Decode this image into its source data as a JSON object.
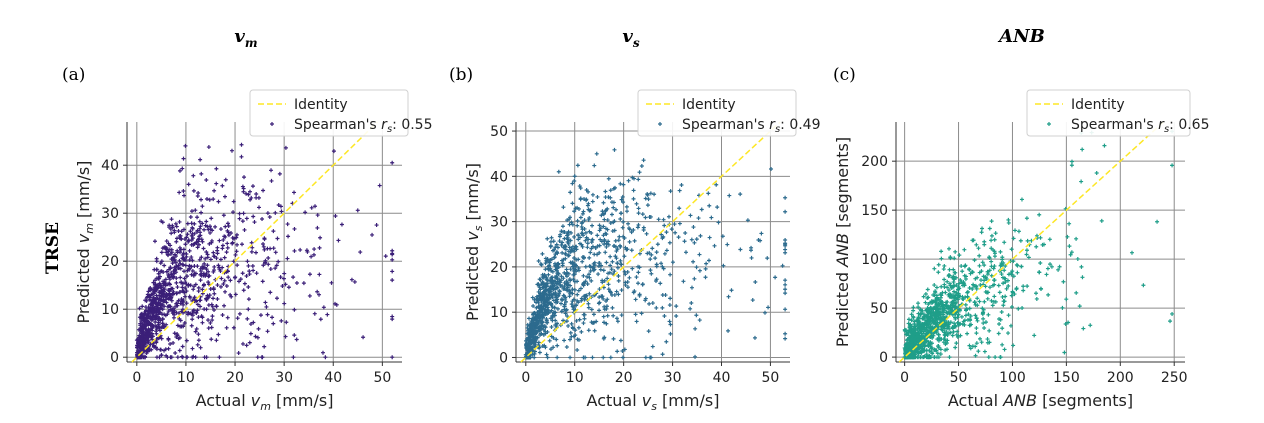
{
  "row_label": "TRSE",
  "chart_data": [
    {
      "type": "scatter",
      "panel": "(a)",
      "column_title": "v",
      "column_title_sub": "m",
      "xlabel_prefix": "Actual ",
      "xlabel_var": "v",
      "xlabel_sub": "m",
      "xlabel_suffix": " [mm/s]",
      "ylabel_prefix": "Predicted ",
      "ylabel_var": "v",
      "ylabel_sub": "m",
      "ylabel_suffix": " [mm/s]",
      "xlim": [
        -2,
        54
      ],
      "ylim": [
        -1,
        49
      ],
      "xticks": [
        0,
        10,
        20,
        30,
        40,
        50
      ],
      "yticks": [
        0,
        10,
        20,
        30,
        40
      ],
      "grid": true,
      "legend_placement": "top-right",
      "legend": {
        "identity": "Identity",
        "spearman_prefix": "Spearman's ",
        "spearman_var": "r",
        "spearman_sub": "s",
        "spearman_value": ":  0.55"
      },
      "color": "#3b1f78",
      "identity_color": "#fde725",
      "points_summary": {
        "n": 1200,
        "x_range": [
          0,
          52
        ],
        "y_range": [
          0,
          47
        ],
        "spearman_r": 0.55
      }
    },
    {
      "type": "scatter",
      "panel": "(b)",
      "column_title": "v",
      "column_title_sub": "s",
      "xlabel_prefix": "Actual ",
      "xlabel_var": "v",
      "xlabel_sub": "s",
      "xlabel_suffix": " [mm/s]",
      "ylabel_prefix": "Predicted ",
      "ylabel_var": "v",
      "ylabel_sub": "s",
      "ylabel_suffix": " [mm/s]",
      "xlim": [
        -2,
        54
      ],
      "ylim": [
        -1,
        52
      ],
      "xticks": [
        0,
        10,
        20,
        30,
        40,
        50
      ],
      "yticks": [
        0,
        10,
        20,
        30,
        40,
        50
      ],
      "grid": true,
      "legend_placement": "top-right",
      "legend": {
        "identity": "Identity",
        "spearman_prefix": "Spearman's ",
        "spearman_var": "r",
        "spearman_sub": "s",
        "spearman_value": ":  0.49"
      },
      "color": "#2c6b8e",
      "identity_color": "#fde725",
      "points_summary": {
        "n": 1200,
        "x_range": [
          0,
          53
        ],
        "y_range": [
          0,
          51
        ],
        "spearman_r": 0.49
      }
    },
    {
      "type": "scatter",
      "panel": "(c)",
      "column_title": "ANB",
      "column_title_sub": "",
      "xlabel_prefix": "Actual ",
      "xlabel_var": "ANB",
      "xlabel_sub": "",
      "xlabel_suffix": " [segments]",
      "ylabel_prefix": "Predicted ",
      "ylabel_var": "ANB",
      "ylabel_sub": "",
      "ylabel_suffix": " [segments]",
      "xlim": [
        -8,
        260
      ],
      "ylim": [
        -5,
        240
      ],
      "xticks": [
        0,
        50,
        100,
        150,
        200,
        250
      ],
      "yticks": [
        0,
        50,
        100,
        150,
        200
      ],
      "grid": true,
      "legend_placement": "top-right",
      "legend": {
        "identity": "Identity",
        "spearman_prefix": "Spearman's ",
        "spearman_var": "r",
        "spearman_sub": "s",
        "spearman_value": ":  0.65"
      },
      "color": "#1f9e89",
      "identity_color": "#fde725",
      "points_summary": {
        "n": 1200,
        "x_range": [
          0,
          248
        ],
        "y_range": [
          0,
          232
        ],
        "spearman_r": 0.65
      }
    }
  ]
}
